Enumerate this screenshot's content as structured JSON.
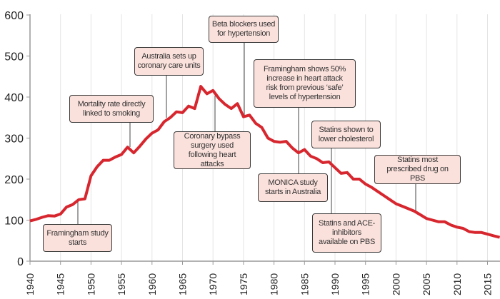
{
  "chart_data": {
    "type": "line",
    "xlim": [
      1940,
      2017
    ],
    "ylim": [
      0,
      600
    ],
    "yticks": [
      0,
      100,
      200,
      300,
      400,
      500,
      600
    ],
    "xticks": [
      1940,
      1945,
      1950,
      1955,
      1960,
      1965,
      1970,
      1975,
      1980,
      1985,
      1990,
      1995,
      2000,
      2005,
      2010,
      2015
    ],
    "grid": "vertical",
    "line_color": "#d7262e",
    "x": [
      1940,
      1941,
      1942,
      1943,
      1944,
      1945,
      1946,
      1947,
      1948,
      1949,
      1950,
      1951,
      1952,
      1953,
      1954,
      1955,
      1956,
      1957,
      1958,
      1959,
      1960,
      1961,
      1962,
      1963,
      1964,
      1965,
      1966,
      1967,
      1968,
      1969,
      1970,
      1971,
      1972,
      1973,
      1974,
      1975,
      1976,
      1977,
      1978,
      1979,
      1980,
      1981,
      1982,
      1983,
      1984,
      1985,
      1986,
      1987,
      1988,
      1989,
      1990,
      1991,
      1992,
      1993,
      1994,
      1995,
      1996,
      1997,
      1998,
      1999,
      2000,
      2001,
      2002,
      2003,
      2004,
      2005,
      2006,
      2007,
      2008,
      2009,
      2010,
      2011,
      2012,
      2013,
      2014,
      2015,
      2016,
      2017
    ],
    "y": [
      98,
      102,
      107,
      111,
      110,
      115,
      132,
      138,
      150,
      152,
      208,
      230,
      246,
      246,
      254,
      260,
      278,
      264,
      280,
      298,
      312,
      320,
      340,
      350,
      364,
      362,
      378,
      372,
      426,
      408,
      416,
      396,
      382,
      372,
      384,
      352,
      356,
      336,
      326,
      300,
      292,
      290,
      292,
      276,
      264,
      272,
      256,
      250,
      240,
      242,
      228,
      214,
      216,
      200,
      200,
      188,
      180,
      170,
      160,
      150,
      140,
      134,
      128,
      122,
      113,
      104,
      100,
      96,
      96,
      88,
      83,
      80,
      72,
      70,
      70,
      66,
      62,
      58
    ],
    "annotations": [
      {
        "text": "Framingham study starts",
        "year": 1947.5
      },
      {
        "text": "Mortality rate directly linked to smoking",
        "year": 1956
      },
      {
        "text": "Australia sets up coronary care units",
        "year": 1962
      },
      {
        "text": "Beta blockers used for hypertension",
        "year": 1975
      },
      {
        "text": "Coronary bypass surgery used following heart attacks",
        "year": 1970
      },
      {
        "text": "Framingham shows 50% increase in heart attack risk from previous ‘safe’ levels of hypertension",
        "year": 1984
      },
      {
        "text": "MONICA study starts in Australia",
        "year": 1984
      },
      {
        "text": "Statins shown to lower cholesterol",
        "year": 1989.5
      },
      {
        "text": "Statins and ACE-inhibitors available on PBS",
        "year": 1990
      },
      {
        "text": "Statins most prescribed drug on PBS",
        "year": 2003.5
      }
    ]
  }
}
